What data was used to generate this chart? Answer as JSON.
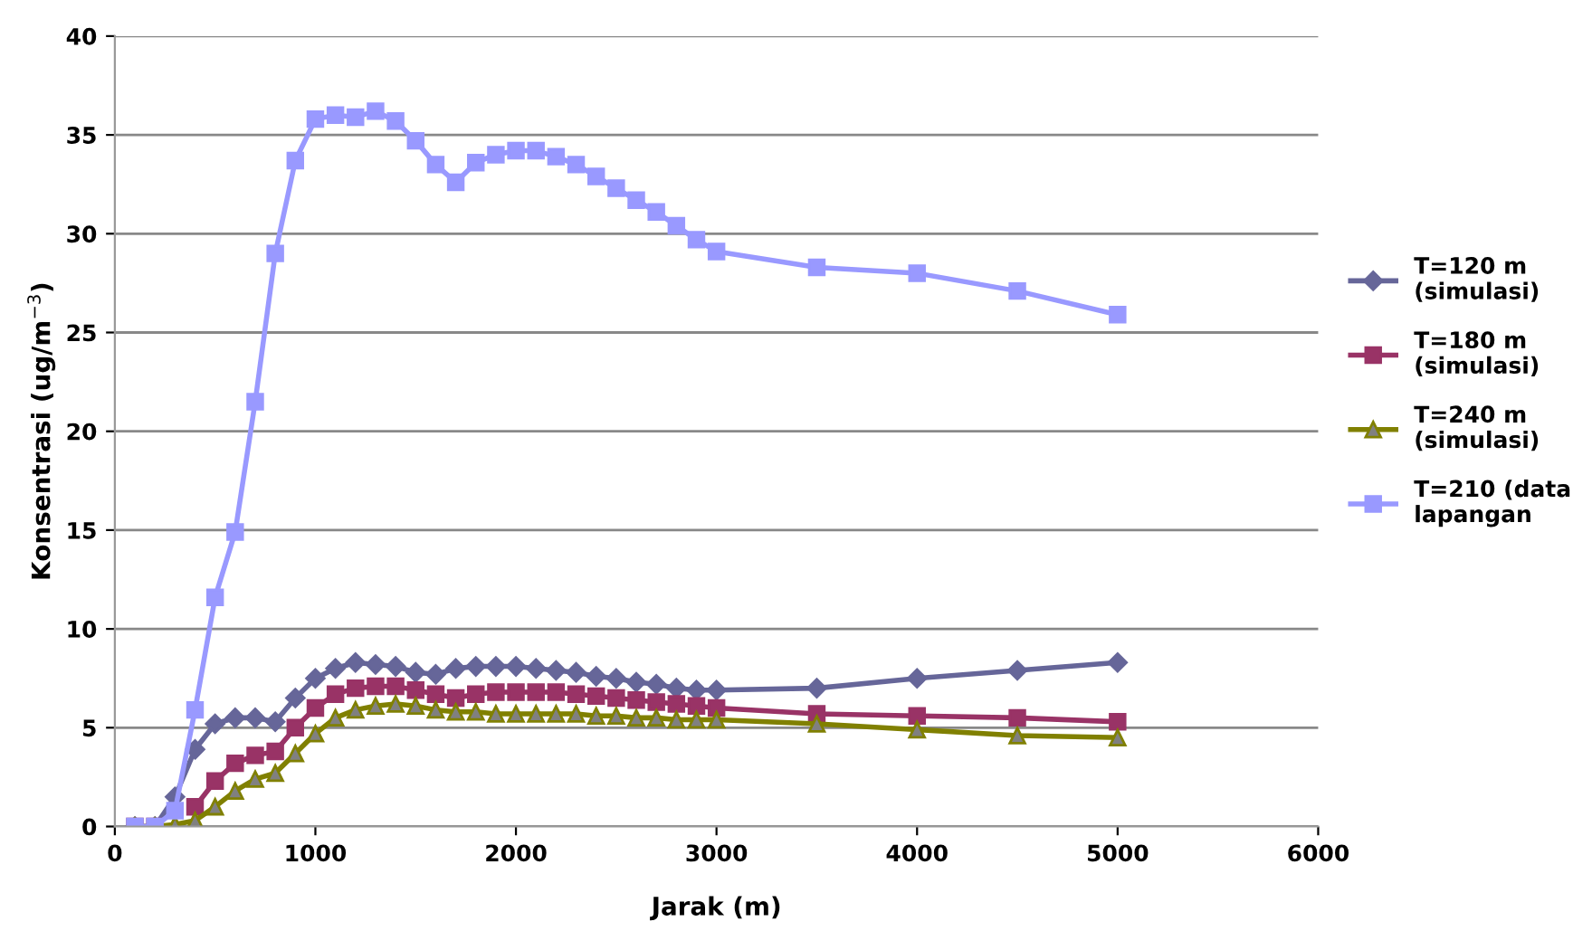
{
  "chart_data": {
    "type": "line",
    "xlabel": "Jarak (m)",
    "ylabel": "Konsentrasi (ug/m$^{−3}$)",
    "x": [
      100,
      200,
      300,
      400,
      500,
      600,
      700,
      800,
      900,
      1000,
      1100,
      1200,
      1300,
      1400,
      1500,
      1600,
      1700,
      1800,
      1900,
      2000,
      2100,
      2200,
      2300,
      2400,
      2500,
      2600,
      2700,
      2800,
      2900,
      3000,
      3500,
      4000,
      4500,
      5000
    ],
    "series": [
      {
        "name": "T=120 m\n(simulasi)",
        "color": "#666699",
        "marker": "diamond",
        "values": [
          0,
          0,
          1.5,
          3.9,
          5.2,
          5.5,
          5.5,
          5.3,
          6.5,
          7.5,
          8.0,
          8.3,
          8.2,
          8.1,
          7.8,
          7.7,
          8.0,
          8.1,
          8.1,
          8.1,
          8.0,
          7.9,
          7.8,
          7.6,
          7.5,
          7.3,
          7.2,
          7.0,
          6.9,
          6.9,
          7.0,
          7.5,
          7.9,
          8.3
        ]
      },
      {
        "name": "T=180 m\n(simulasi)",
        "color": "#993366",
        "marker": "square",
        "values": [
          0,
          0,
          null,
          1.0,
          2.3,
          3.2,
          3.6,
          3.8,
          5.0,
          6.0,
          6.7,
          7.0,
          7.1,
          7.1,
          6.9,
          6.7,
          6.5,
          6.7,
          6.8,
          6.8,
          6.8,
          6.8,
          6.7,
          6.6,
          6.5,
          6.4,
          6.3,
          6.2,
          6.1,
          6.0,
          5.7,
          5.6,
          5.5,
          5.3
        ]
      },
      {
        "name": "T=240 m\n(simulasi)",
        "color": "#808000",
        "marker": "triangle",
        "values": [
          0,
          0,
          0.1,
          0.3,
          1.0,
          1.8,
          2.4,
          2.7,
          3.7,
          4.7,
          5.5,
          5.9,
          6.1,
          6.2,
          6.1,
          5.9,
          5.8,
          5.8,
          5.7,
          5.7,
          5.7,
          5.7,
          5.7,
          5.6,
          5.6,
          5.5,
          5.5,
          5.4,
          5.4,
          5.4,
          5.2,
          4.9,
          4.6,
          4.5
        ]
      },
      {
        "name": "T=210 (data\nlapangan",
        "color": "#9999ff",
        "marker": "square",
        "values": [
          0,
          0,
          0.8,
          5.9,
          11.6,
          14.9,
          21.5,
          29.0,
          33.7,
          35.8,
          36.0,
          35.9,
          36.2,
          35.7,
          34.7,
          33.5,
          32.6,
          33.6,
          34.0,
          34.2,
          34.2,
          33.9,
          33.5,
          32.9,
          32.3,
          31.7,
          31.1,
          30.4,
          29.7,
          29.1,
          28.3,
          28.0,
          27.1,
          25.9
        ]
      }
    ],
    "xlim": [
      0,
      6000
    ],
    "xticks": [
      0,
      1000,
      2000,
      3000,
      4000,
      5000,
      6000
    ],
    "ylim": [
      0,
      40
    ],
    "yticks": [
      0,
      5,
      10,
      15,
      20,
      25,
      30,
      35,
      40
    ],
    "grid": "y",
    "legend": "right"
  }
}
